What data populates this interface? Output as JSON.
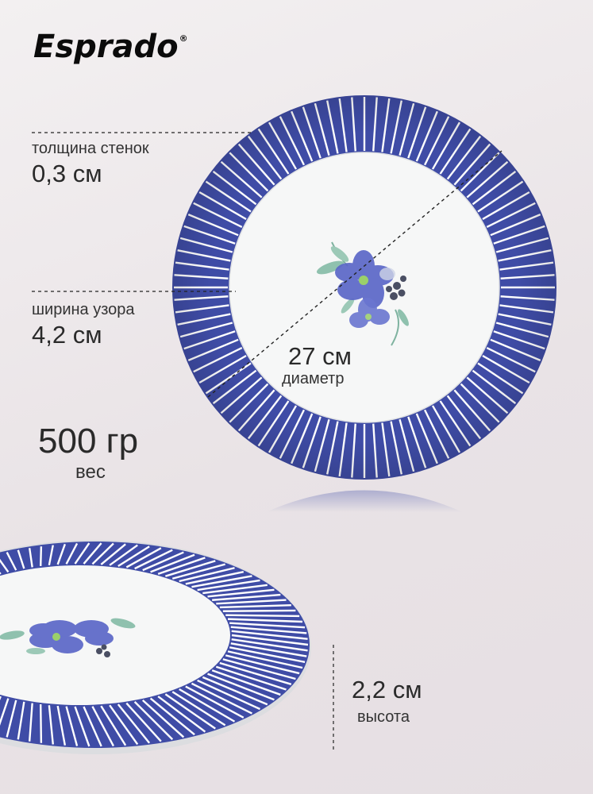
{
  "brand": {
    "name": "Esprado",
    "mark": "®"
  },
  "specs": {
    "wall_thickness_label": "толщина стенок",
    "wall_thickness_value": "0,3 см",
    "pattern_width_label": "ширина узора",
    "pattern_width_value": "4,2 см",
    "diameter_value": "27 см",
    "diameter_label": "диаметр",
    "weight_value": "500 гр",
    "weight_label": "вес",
    "height_value": "2,2 см",
    "height_label": "высота"
  },
  "colors": {
    "rim": "#3f4ca6",
    "plate": "#f7f8f8",
    "flower": "#5a67c9",
    "leaf": "#7fb3a0"
  }
}
